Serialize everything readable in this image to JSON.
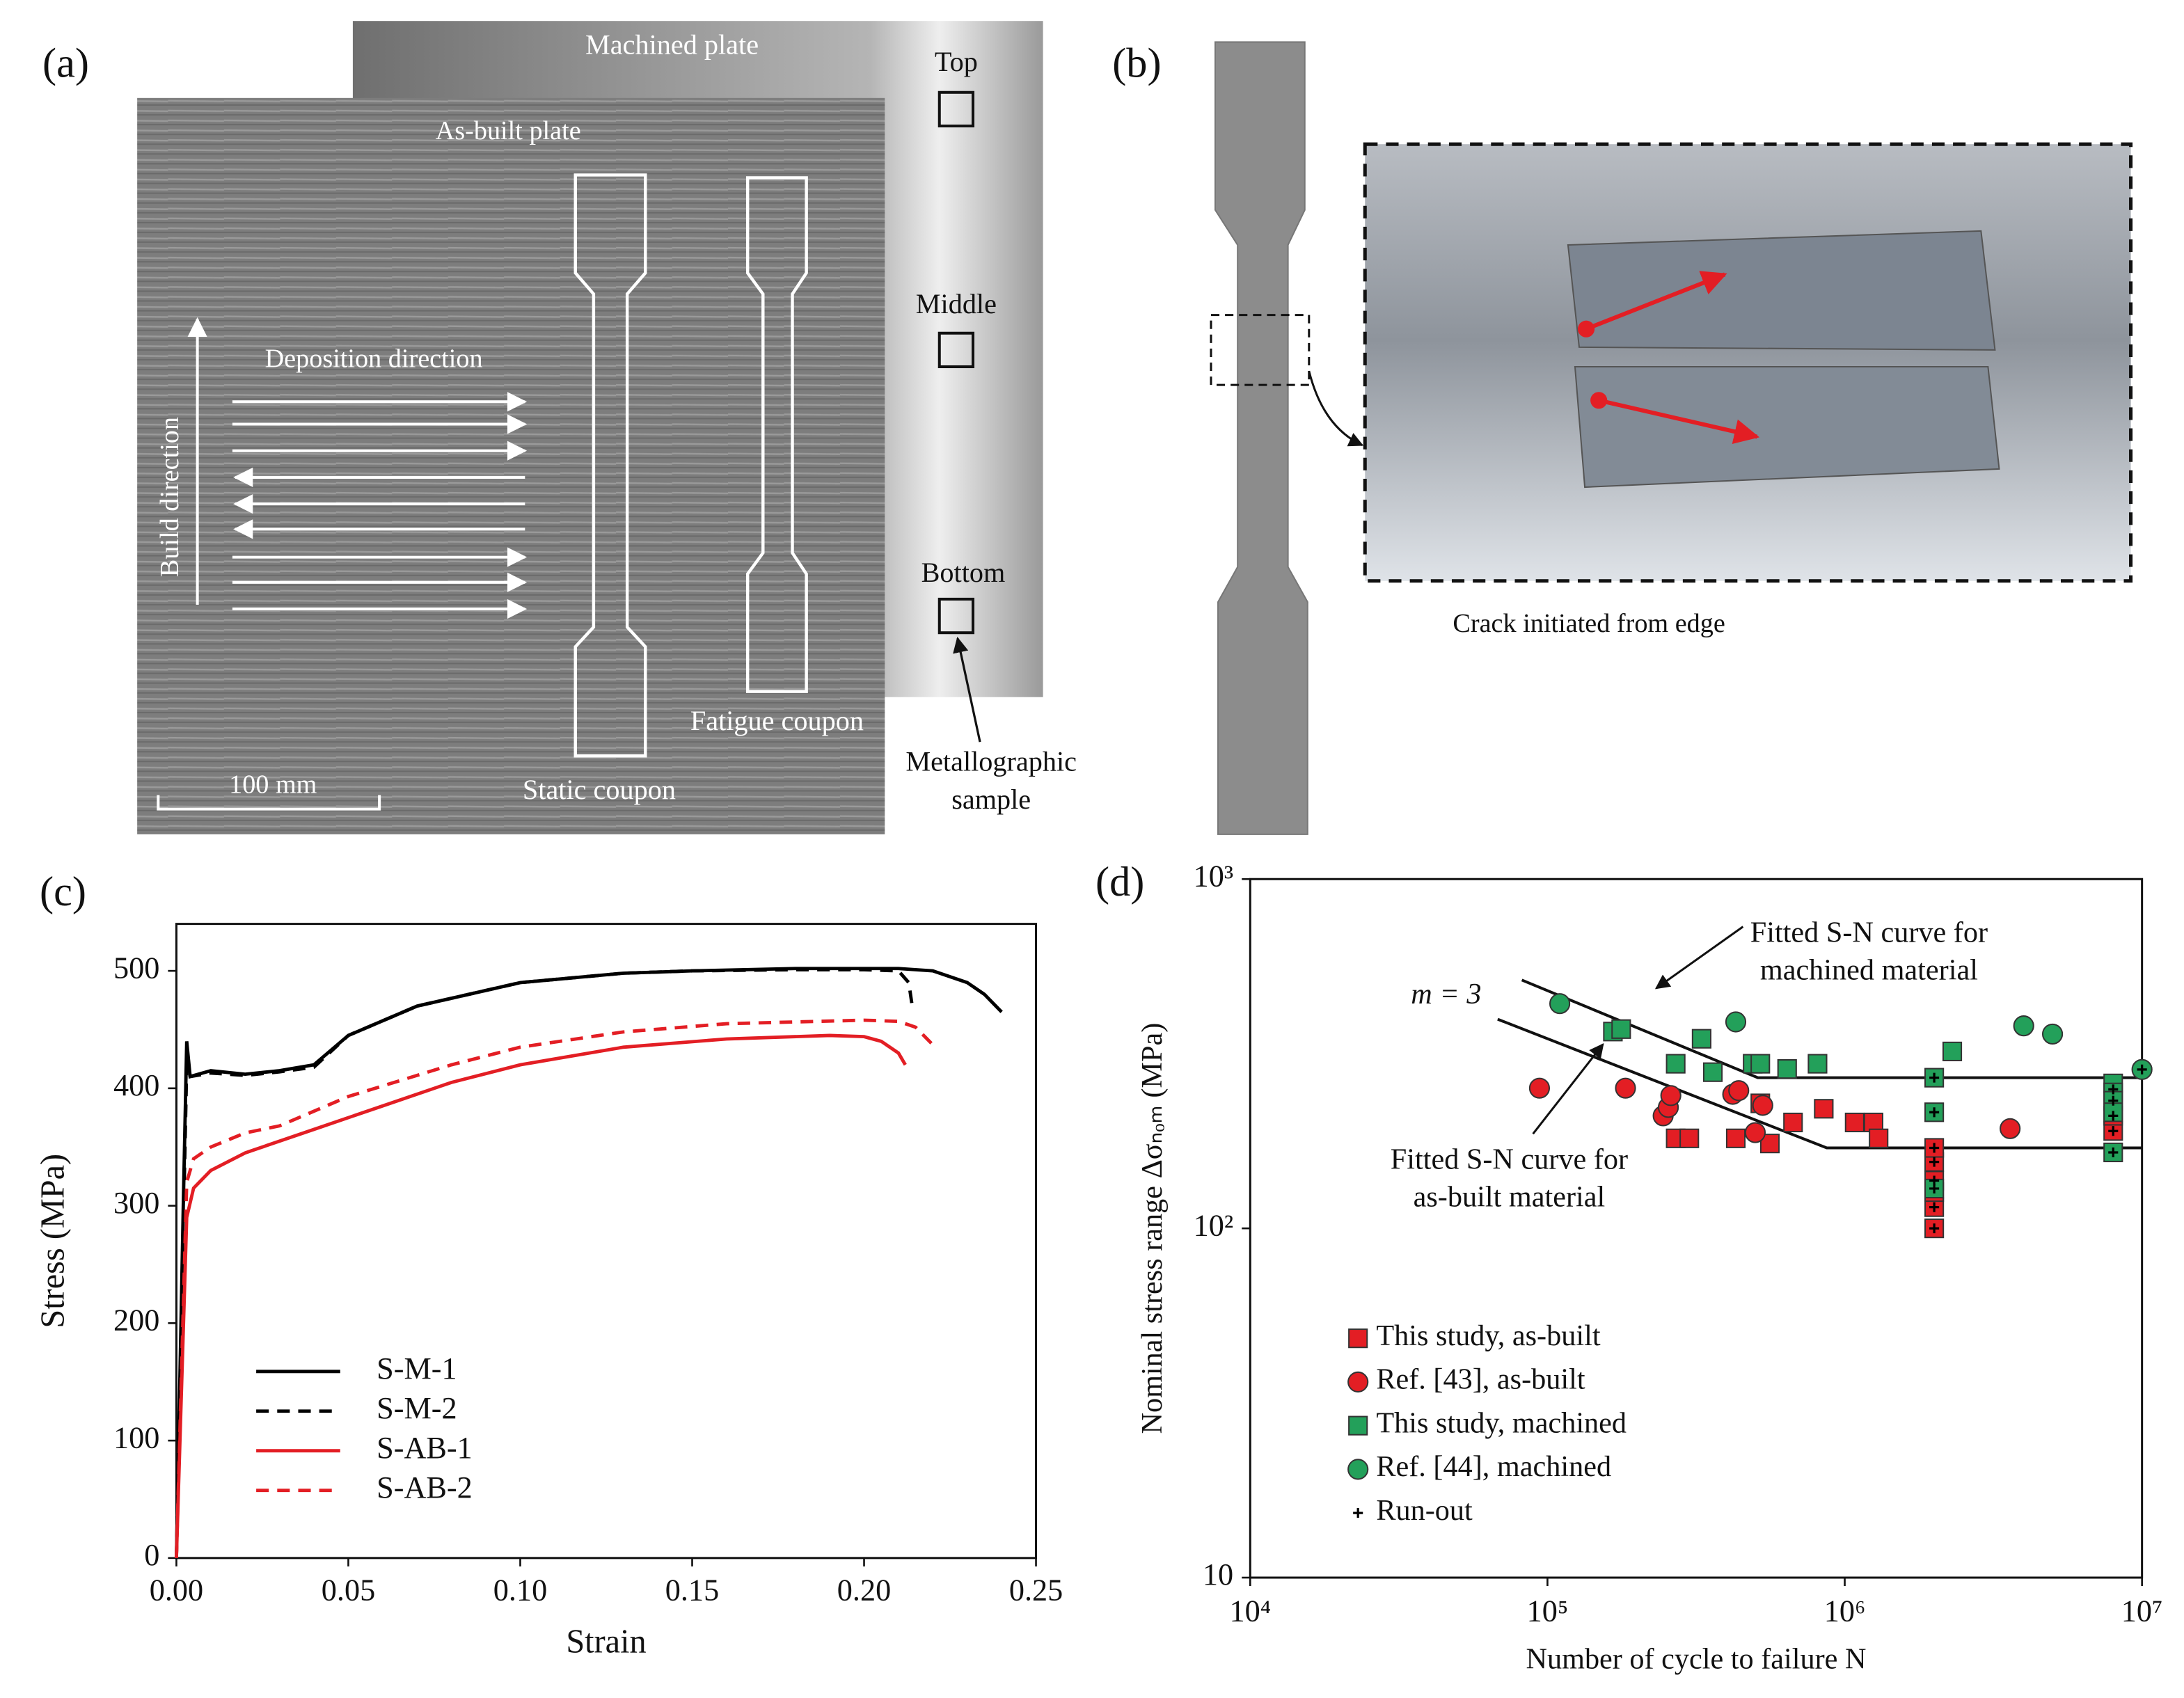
{
  "figure_a": {
    "label": "(a)",
    "machined_plate": "Machined plate",
    "as_built_plate": "As-built plate",
    "locations": [
      "Top",
      "Middle",
      "Bottom"
    ],
    "deposition_direction": "Deposition direction",
    "build_direction": "Build direction",
    "scale_bar": "100 mm",
    "static_coupon": "Static coupon",
    "fatigue_coupon": "Fatigue coupon",
    "metallographic_sample": [
      "Metallographic",
      "sample"
    ]
  },
  "figure_b": {
    "label": "(b)",
    "caption": "Crack initiated from edge"
  },
  "chart_data": [
    {
      "type": "line",
      "panel_label": "(c)",
      "x_label": "Strain",
      "y_label": "Stress (MPa)",
      "xlim": [
        0,
        0.25
      ],
      "ylim": [
        0,
        540
      ],
      "xticks": [
        {
          "value": 0,
          "label": "0.00"
        },
        {
          "value": 0.05,
          "label": "0.05"
        },
        {
          "value": 0.1,
          "label": "0.10"
        },
        {
          "value": 0.15,
          "label": "0.15"
        },
        {
          "value": 0.2,
          "label": "0.20"
        },
        {
          "value": 0.25,
          "label": "0.25"
        }
      ],
      "yticks": [
        0,
        100,
        200,
        300,
        400,
        500
      ],
      "legend": "lower left",
      "series": [
        {
          "name": "S-M-1",
          "color": "#000000",
          "dashed": false,
          "x": [
            0,
            0.002,
            0.003,
            0.004,
            0.01,
            0.02,
            0.03,
            0.04,
            0.05,
            0.07,
            0.1,
            0.13,
            0.15,
            0.18,
            0.2,
            0.21,
            0.22,
            0.23,
            0.235,
            0.24
          ],
          "values": [
            0,
            300,
            440,
            410,
            415,
            412,
            415,
            420,
            445,
            470,
            490,
            498,
            500,
            502,
            502,
            502,
            500,
            490,
            480,
            465
          ]
        },
        {
          "name": "S-M-2",
          "color": "#000000",
          "dashed": true,
          "x": [
            0,
            0.003,
            0.004,
            0.01,
            0.02,
            0.03,
            0.04,
            0.05,
            0.07,
            0.1,
            0.13,
            0.15,
            0.18,
            0.2,
            0.21,
            0.213,
            0.214
          ],
          "values": [
            0,
            420,
            410,
            413,
            411,
            414,
            418,
            445,
            470,
            490,
            498,
            500,
            501,
            501,
            500,
            490,
            470
          ]
        },
        {
          "name": "S-AB-1",
          "color": "#e31e24",
          "dashed": false,
          "x": [
            0,
            0.003,
            0.005,
            0.01,
            0.02,
            0.04,
            0.06,
            0.08,
            0.1,
            0.13,
            0.16,
            0.19,
            0.2,
            0.205,
            0.21,
            0.212
          ],
          "values": [
            0,
            290,
            315,
            330,
            345,
            365,
            385,
            405,
            420,
            435,
            442,
            445,
            444,
            440,
            430,
            420
          ]
        },
        {
          "name": "S-AB-2",
          "color": "#e31e24",
          "dashed": true,
          "x": [
            0,
            0.003,
            0.005,
            0.01,
            0.02,
            0.03,
            0.05,
            0.08,
            0.1,
            0.13,
            0.16,
            0.2,
            0.21,
            0.215,
            0.22
          ],
          "values": [
            0,
            320,
            340,
            350,
            362,
            368,
            393,
            420,
            435,
            448,
            455,
            458,
            457,
            452,
            437
          ]
        }
      ]
    },
    {
      "type": "scatter",
      "panel_label": "(d)",
      "x_label": "Number of cycle to failure N",
      "y_label": "Nominal stress range Δσₙₒₘ (MPa)",
      "xscale": "log",
      "yscale": "log",
      "xlim": [
        10000,
        10000000
      ],
      "ylim": [
        10,
        1000
      ],
      "xticks": [
        {
          "value": 10000,
          "label": "10⁴"
        },
        {
          "value": 100000,
          "label": "10⁵"
        },
        {
          "value": 1000000,
          "label": "10⁶"
        },
        {
          "value": 10000000,
          "label": "10⁷"
        }
      ],
      "yticks": [
        10,
        {
          "value": 100,
          "label": "10²"
        },
        {
          "value": 1000,
          "label": "10³"
        }
      ],
      "legend": "lower left",
      "slope_label": "m = 3",
      "fit_lines": [
        {
          "label": [
            "Fitted S-N curve for",
            "machined material"
          ],
          "x": [
            82000,
            510000,
            10000000
          ],
          "values": [
            514,
            270,
            270
          ]
        },
        {
          "label": [
            "Fitted S-N curve for",
            "as-built material"
          ],
          "x": [
            68000,
            870000,
            10000000
          ],
          "values": [
            397,
            170,
            170
          ]
        }
      ],
      "series": [
        {
          "name": "This study, as-built",
          "color": "#e31e24",
          "marker": "square",
          "x": [
            270000,
            300000,
            430000,
            520000,
            560000,
            670000,
            850000,
            1080000,
            1250000,
            1300000,
            2000000,
            2000000,
            2000000,
            2000000,
            2000000,
            2000000,
            8000000,
            8000000
          ],
          "values": [
            181,
            181,
            181,
            228,
            175,
            201,
            220,
            201,
            201,
            181,
            100,
            115,
            127,
            137,
            155,
            170,
            190,
            210
          ]
        },
        {
          "name": "Ref. [43], as-built",
          "color": "#e31e24",
          "marker": "circle",
          "x": [
            94000,
            183000,
            245000,
            255000,
            260000,
            420000,
            440000,
            500000,
            530000,
            3600000
          ],
          "values": [
            252,
            252,
            210,
            222,
            240,
            242,
            248,
            188,
            225,
            193
          ]
        },
        {
          "name": "This study, machined",
          "color": "#23a05a",
          "marker": "square",
          "x": [
            166000,
            177000,
            270000,
            330000,
            360000,
            490000,
            520000,
            640000,
            810000,
            2000000,
            2000000,
            2000000,
            2300000,
            8000000,
            8000000,
            8000000,
            8000000,
            8000000
          ],
          "values": [
            366,
            372,
            296,
            349,
            280,
            296,
            296,
            286,
            296,
            270,
            215,
            130,
            321,
            260,
            245,
            232,
            215,
            165
          ]
        },
        {
          "name": "Ref. [44], machined",
          "color": "#23a05a",
          "marker": "circle",
          "x": [
            110000,
            430000,
            4000000,
            5000000,
            10000000
          ],
          "values": [
            440,
            390,
            380,
            360,
            285
          ]
        },
        {
          "name": "Run-out",
          "color": "#000000",
          "marker": "plus",
          "x": [
            2000000,
            2000000,
            2000000,
            2000000,
            2000000,
            2000000,
            2000000,
            2000000,
            8000000,
            8000000,
            8000000,
            8000000,
            8000000,
            10000000
          ],
          "values": [
            100,
            115,
            130,
            137,
            155,
            170,
            215,
            270,
            190,
            210,
            232,
            250,
            165,
            285
          ]
        }
      ]
    }
  ]
}
